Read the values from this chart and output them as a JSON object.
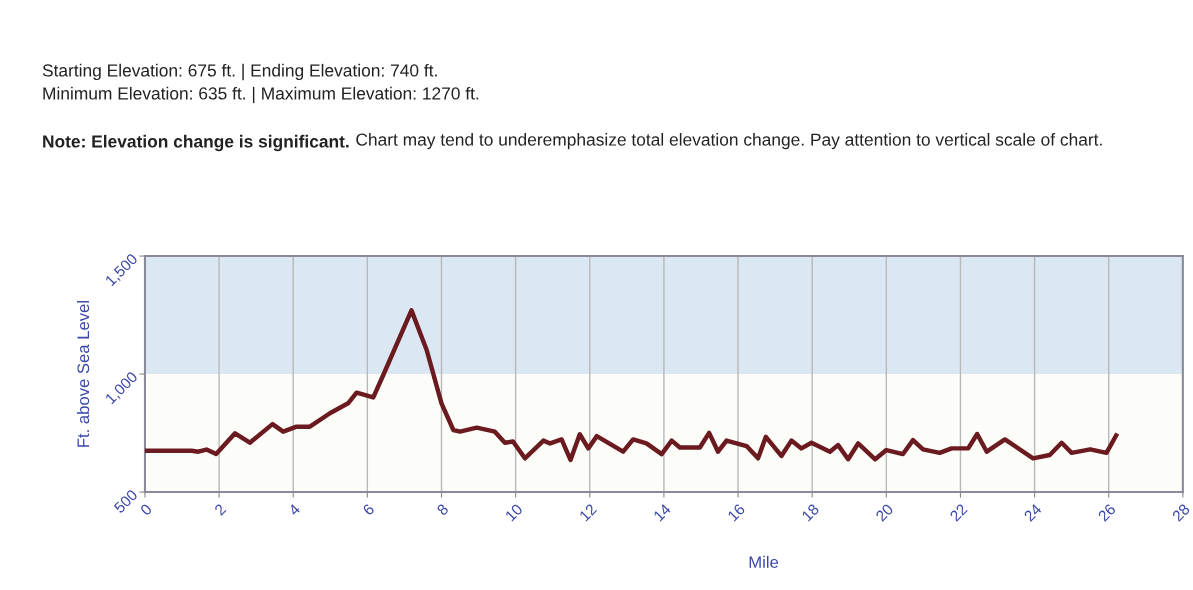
{
  "chart_data": {
    "type": "line",
    "annotations": [
      "Starting Elevation: 675 ft. | Ending Elevation: 740 ft.",
      "Minimum Elevation: 635 ft. | Maximum Elevation: 1270 ft.",
      "Note: Elevation change is significant.",
      "Chart may tend to underemphasize total elevation change. Pay attention to vertical scale of chart."
    ],
    "xlabel": "Mile",
    "ylabel": "Ft. above Sea Level",
    "series": [
      {
        "color": "#6b1a1f",
        "x": [
          0,
          1.26,
          1.44,
          1.66,
          1.92,
          2.43,
          2.83,
          3.44,
          3.73,
          4.09,
          4.45,
          4.99,
          5.48,
          5.71,
          6.16,
          6.43,
          7.19,
          7.6,
          8.0,
          8.32,
          8.5,
          8.95,
          9.44,
          9.71,
          9.93,
          10.25,
          10.75,
          10.93,
          11.24,
          11.48,
          11.73,
          11.96,
          12.19,
          12.9,
          13.17,
          13.53,
          13.94,
          14.21,
          14.43,
          14.97,
          15.22,
          15.46,
          15.69,
          16.23,
          16.54,
          16.75,
          17.17,
          17.44,
          17.71,
          17.98,
          18.48,
          18.7,
          18.97,
          19.24,
          19.7,
          20.0,
          20.45,
          20.72,
          20.99,
          21.44,
          21.76,
          22.21,
          22.45,
          22.71,
          23.2,
          23.96,
          24.41,
          24.73,
          25.0,
          25.5,
          25.94,
          26.2
        ],
        "values": [
          675,
          675,
          671,
          680,
          661,
          749,
          709,
          788,
          756,
          777,
          777,
          834,
          876,
          921,
          901,
          996,
          1270,
          1102,
          876,
          763,
          756,
          773,
          756,
          709,
          714,
          643,
          718,
          706,
          723,
          636,
          745,
          685,
          737,
          671,
          723,
          706,
          661,
          718,
          689,
          689,
          751,
          671,
          718,
          695,
          643,
          734,
          653,
          718,
          685,
          709,
          671,
          699,
          639,
          706,
          639,
          678,
          661,
          720,
          681,
          666,
          685,
          685,
          746,
          671,
          723,
          643,
          657,
          709,
          666,
          681,
          666,
          740
        ]
      }
    ],
    "xlim": [
      0,
      28
    ],
    "xticks": [
      0,
      2,
      4,
      6,
      8,
      10,
      12,
      14,
      16,
      18,
      20,
      22,
      24,
      26,
      28
    ],
    "ylim": [
      500,
      1500
    ],
    "yticks": [
      500,
      {
        "value": 1000,
        "label": "1,000"
      },
      {
        "value": 1500,
        "label": "1,500"
      }
    ],
    "bands": [
      {
        "axis": "y",
        "from": 1000,
        "to": 1500,
        "color": "#dbe7f2"
      }
    ],
    "grid": "x",
    "marker": "none",
    "line_style": "solid"
  }
}
